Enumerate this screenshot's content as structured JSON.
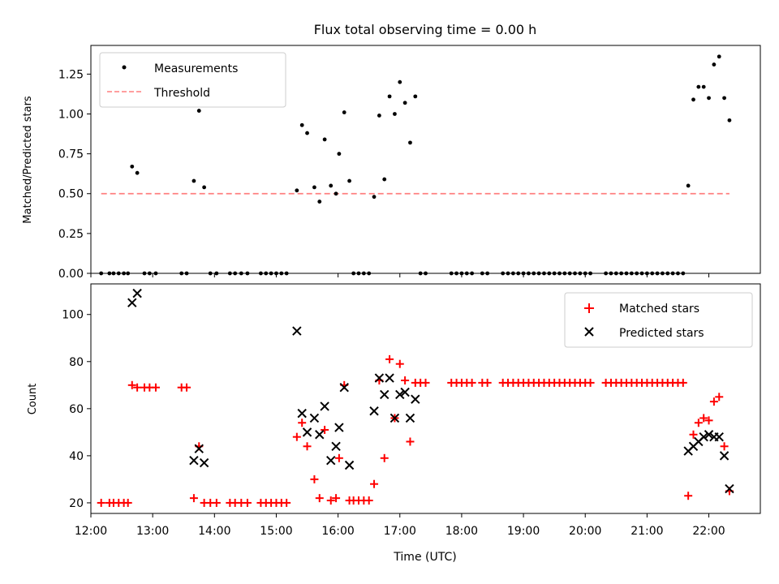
{
  "title": "Flux total observing time = 0.00 h",
  "chart_data": [
    {
      "type": "scatter",
      "panel": "top",
      "ylabel": "Matched/Predicted stars",
      "xlabel": "",
      "xlim": [
        "12:00",
        "22:50"
      ],
      "ylim": [
        0.0,
        1.43
      ],
      "yticks": [
        0.0,
        0.25,
        0.5,
        0.75,
        1.0,
        1.25
      ],
      "ytick_labels": [
        "0.00",
        "0.25",
        "0.50",
        "0.75",
        "1.00",
        "1.25"
      ],
      "legend_position": "top-left",
      "threshold": {
        "name": "Threshold",
        "value": 0.5,
        "x": [
          "12:10",
          "22:20"
        ],
        "color": "#ff7f7f",
        "style": "dashed"
      },
      "series": [
        {
          "name": "Measurements",
          "color": "#000000",
          "marker": "dot",
          "points": [
            [
              "12:10",
              0
            ],
            [
              "12:18",
              0
            ],
            [
              "12:22",
              0
            ],
            [
              "12:27",
              0
            ],
            [
              "12:32",
              0
            ],
            [
              "12:36",
              0
            ],
            [
              "12:40",
              0.67
            ],
            [
              "12:45",
              0.63
            ],
            [
              "12:52",
              0
            ],
            [
              "12:57",
              0
            ],
            [
              "13:03",
              0
            ],
            [
              "13:28",
              0
            ],
            [
              "13:33",
              0
            ],
            [
              "13:40",
              0.58
            ],
            [
              "13:45",
              1.02
            ],
            [
              "13:50",
              0.54
            ],
            [
              "13:56",
              0
            ],
            [
              "14:02",
              0
            ],
            [
              "14:15",
              0
            ],
            [
              "14:20",
              0
            ],
            [
              "14:26",
              0
            ],
            [
              "14:32",
              0
            ],
            [
              "14:45",
              0
            ],
            [
              "14:50",
              0
            ],
            [
              "14:55",
              0
            ],
            [
              "15:00",
              0
            ],
            [
              "15:05",
              0
            ],
            [
              "15:10",
              0
            ],
            [
              "15:20",
              0.52
            ],
            [
              "15:25",
              0.93
            ],
            [
              "15:30",
              0.88
            ],
            [
              "15:37",
              0.54
            ],
            [
              "15:42",
              0.45
            ],
            [
              "15:47",
              0.84
            ],
            [
              "15:53",
              0.55
            ],
            [
              "15:58",
              0.5
            ],
            [
              "16:01",
              0.75
            ],
            [
              "16:06",
              1.01
            ],
            [
              "16:11",
              0.58
            ],
            [
              "16:15",
              0
            ],
            [
              "16:20",
              0
            ],
            [
              "16:25",
              0
            ],
            [
              "16:30",
              0
            ],
            [
              "16:35",
              0.48
            ],
            [
              "16:40",
              0.99
            ],
            [
              "16:45",
              0.59
            ],
            [
              "16:50",
              1.11
            ],
            [
              "16:55",
              1.0
            ],
            [
              "17:00",
              1.2
            ],
            [
              "17:05",
              1.07
            ],
            [
              "17:10",
              0.82
            ],
            [
              "17:15",
              1.11
            ],
            [
              "17:20",
              0
            ],
            [
              "17:25",
              0
            ],
            [
              "17:50",
              0
            ],
            [
              "17:55",
              0
            ],
            [
              "18:00",
              0
            ],
            [
              "18:05",
              0
            ],
            [
              "18:10",
              0
            ],
            [
              "18:20",
              0
            ],
            [
              "18:25",
              0
            ],
            [
              "18:40",
              0
            ],
            [
              "18:45",
              0
            ],
            [
              "18:50",
              0
            ],
            [
              "18:55",
              0
            ],
            [
              "19:00",
              0
            ],
            [
              "19:05",
              0
            ],
            [
              "19:10",
              0
            ],
            [
              "19:15",
              0
            ],
            [
              "19:20",
              0
            ],
            [
              "19:25",
              0
            ],
            [
              "19:30",
              0
            ],
            [
              "19:35",
              0
            ],
            [
              "19:40",
              0
            ],
            [
              "19:45",
              0
            ],
            [
              "19:50",
              0
            ],
            [
              "19:55",
              0
            ],
            [
              "20:00",
              0
            ],
            [
              "20:05",
              0
            ],
            [
              "20:20",
              0
            ],
            [
              "20:25",
              0
            ],
            [
              "20:30",
              0
            ],
            [
              "20:35",
              0
            ],
            [
              "20:40",
              0
            ],
            [
              "20:45",
              0
            ],
            [
              "20:50",
              0
            ],
            [
              "20:55",
              0
            ],
            [
              "21:00",
              0
            ],
            [
              "21:05",
              0
            ],
            [
              "21:10",
              0
            ],
            [
              "21:15",
              0
            ],
            [
              "21:20",
              0
            ],
            [
              "21:25",
              0
            ],
            [
              "21:30",
              0
            ],
            [
              "21:35",
              0
            ],
            [
              "21:40",
              0.55
            ],
            [
              "21:45",
              1.09
            ],
            [
              "21:50",
              1.17
            ],
            [
              "21:55",
              1.17
            ],
            [
              "22:00",
              1.1
            ],
            [
              "22:05",
              1.31
            ],
            [
              "22:10",
              1.36
            ],
            [
              "22:15",
              1.1
            ],
            [
              "22:20",
              0.96
            ]
          ]
        }
      ]
    },
    {
      "type": "scatter",
      "panel": "bottom",
      "xlabel": "Time (UTC)",
      "ylabel": "Count",
      "xlim": [
        "12:00",
        "22:50"
      ],
      "ylim": [
        15.5,
        113
      ],
      "yticks": [
        20,
        40,
        60,
        80,
        100
      ],
      "xticks": [
        "12:00",
        "13:00",
        "14:00",
        "15:00",
        "16:00",
        "17:00",
        "18:00",
        "19:00",
        "20:00",
        "21:00",
        "22:00"
      ],
      "legend_position": "top-right",
      "series": [
        {
          "name": "Matched stars",
          "color": "#ff0000",
          "marker": "plus",
          "points": [
            [
              "12:10",
              20
            ],
            [
              "12:18",
              20
            ],
            [
              "12:22",
              20
            ],
            [
              "12:27",
              20
            ],
            [
              "12:32",
              20
            ],
            [
              "12:36",
              20
            ],
            [
              "12:40",
              70
            ],
            [
              "12:45",
              69
            ],
            [
              "12:52",
              69
            ],
            [
              "12:57",
              69
            ],
            [
              "13:03",
              69
            ],
            [
              "13:28",
              69
            ],
            [
              "13:33",
              69
            ],
            [
              "13:40",
              22
            ],
            [
              "13:45",
              44
            ],
            [
              "13:50",
              20
            ],
            [
              "13:56",
              20
            ],
            [
              "14:02",
              20
            ],
            [
              "14:15",
              20
            ],
            [
              "14:20",
              20
            ],
            [
              "14:26",
              20
            ],
            [
              "14:32",
              20
            ],
            [
              "14:45",
              20
            ],
            [
              "14:50",
              20
            ],
            [
              "14:55",
              20
            ],
            [
              "15:00",
              20
            ],
            [
              "15:05",
              20
            ],
            [
              "15:10",
              20
            ],
            [
              "15:20",
              48
            ],
            [
              "15:25",
              54
            ],
            [
              "15:30",
              44
            ],
            [
              "15:37",
              30
            ],
            [
              "15:42",
              22
            ],
            [
              "15:47",
              51
            ],
            [
              "15:53",
              21
            ],
            [
              "15:58",
              22
            ],
            [
              "16:01",
              39
            ],
            [
              "16:06",
              70
            ],
            [
              "16:11",
              21
            ],
            [
              "16:15",
              21
            ],
            [
              "16:20",
              21
            ],
            [
              "16:25",
              21
            ],
            [
              "16:30",
              21
            ],
            [
              "16:35",
              28
            ],
            [
              "16:40",
              72
            ],
            [
              "16:45",
              39
            ],
            [
              "16:50",
              81
            ],
            [
              "16:55",
              56
            ],
            [
              "17:00",
              79
            ],
            [
              "17:05",
              72
            ],
            [
              "17:10",
              46
            ],
            [
              "17:15",
              71
            ],
            [
              "17:20",
              71
            ],
            [
              "17:25",
              71
            ],
            [
              "17:50",
              71
            ],
            [
              "17:55",
              71
            ],
            [
              "18:00",
              71
            ],
            [
              "18:05",
              71
            ],
            [
              "18:10",
              71
            ],
            [
              "18:20",
              71
            ],
            [
              "18:25",
              71
            ],
            [
              "18:40",
              71
            ],
            [
              "18:45",
              71
            ],
            [
              "18:50",
              71
            ],
            [
              "18:55",
              71
            ],
            [
              "19:00",
              71
            ],
            [
              "19:05",
              71
            ],
            [
              "19:10",
              71
            ],
            [
              "19:15",
              71
            ],
            [
              "19:20",
              71
            ],
            [
              "19:25",
              71
            ],
            [
              "19:30",
              71
            ],
            [
              "19:35",
              71
            ],
            [
              "19:40",
              71
            ],
            [
              "19:45",
              71
            ],
            [
              "19:50",
              71
            ],
            [
              "19:55",
              71
            ],
            [
              "20:00",
              71
            ],
            [
              "20:05",
              71
            ],
            [
              "20:20",
              71
            ],
            [
              "20:25",
              71
            ],
            [
              "20:30",
              71
            ],
            [
              "20:35",
              71
            ],
            [
              "20:40",
              71
            ],
            [
              "20:45",
              71
            ],
            [
              "20:50",
              71
            ],
            [
              "20:55",
              71
            ],
            [
              "21:00",
              71
            ],
            [
              "21:05",
              71
            ],
            [
              "21:10",
              71
            ],
            [
              "21:15",
              71
            ],
            [
              "21:20",
              71
            ],
            [
              "21:25",
              71
            ],
            [
              "21:30",
              71
            ],
            [
              "21:35",
              71
            ],
            [
              "21:40",
              23
            ],
            [
              "21:45",
              49
            ],
            [
              "21:50",
              54
            ],
            [
              "21:55",
              56
            ],
            [
              "22:00",
              55
            ],
            [
              "22:05",
              63
            ],
            [
              "22:10",
              65
            ],
            [
              "22:15",
              44
            ],
            [
              "22:20",
              25
            ]
          ]
        },
        {
          "name": "Predicted stars",
          "color": "#000000",
          "marker": "x",
          "points": [
            [
              "12:40",
              105
            ],
            [
              "12:45",
              109
            ],
            [
              "13:40",
              38
            ],
            [
              "13:45",
              43
            ],
            [
              "13:50",
              37
            ],
            [
              "15:20",
              93
            ],
            [
              "15:25",
              58
            ],
            [
              "15:30",
              50
            ],
            [
              "15:37",
              56
            ],
            [
              "15:42",
              49
            ],
            [
              "15:47",
              61
            ],
            [
              "15:53",
              38
            ],
            [
              "15:58",
              44
            ],
            [
              "16:01",
              52
            ],
            [
              "16:06",
              69
            ],
            [
              "16:11",
              36
            ],
            [
              "16:35",
              59
            ],
            [
              "16:40",
              73
            ],
            [
              "16:45",
              66
            ],
            [
              "16:50",
              73
            ],
            [
              "16:55",
              56
            ],
            [
              "17:00",
              66
            ],
            [
              "17:05",
              67
            ],
            [
              "17:10",
              56
            ],
            [
              "17:15",
              64
            ],
            [
              "21:40",
              42
            ],
            [
              "21:45",
              44
            ],
            [
              "21:50",
              46
            ],
            [
              "21:55",
              48
            ],
            [
              "22:00",
              49
            ],
            [
              "22:05",
              48
            ],
            [
              "22:10",
              48
            ],
            [
              "22:15",
              40
            ],
            [
              "22:20",
              26
            ]
          ]
        }
      ]
    }
  ]
}
